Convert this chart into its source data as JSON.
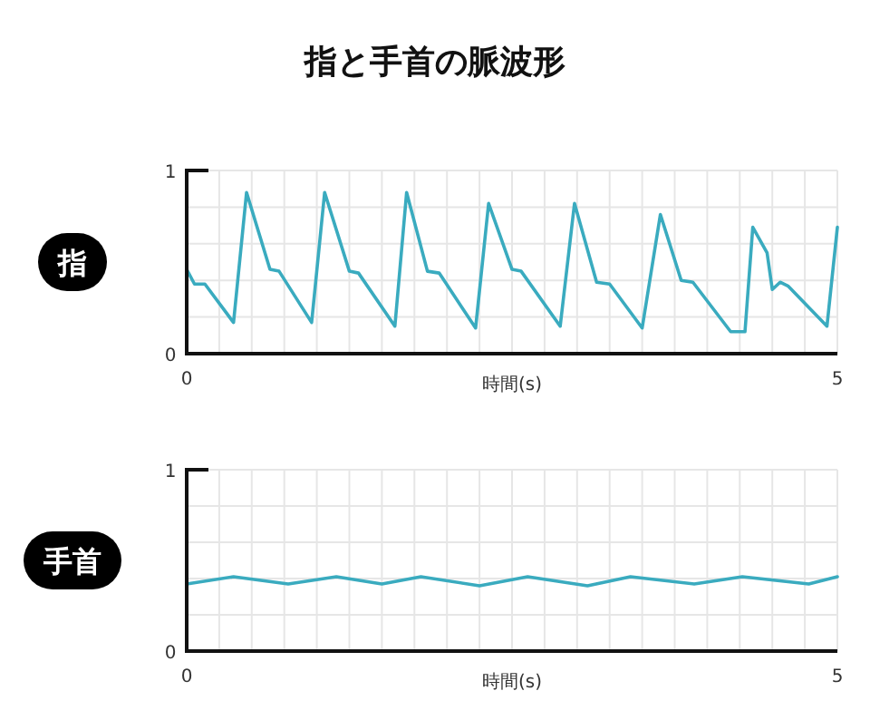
{
  "chart_data": [
    {
      "type": "line",
      "title": "指と手首の脈波形",
      "ylabel": "指",
      "xlabel": "時間(s)",
      "xlim": [
        0,
        5
      ],
      "ylim": [
        0,
        1
      ],
      "xticks": [
        {
          "value": 0,
          "label": "0"
        },
        {
          "value": 0.25,
          "label": null
        },
        {
          "value": 0.5,
          "label": null
        },
        {
          "value": 0.75,
          "label": null
        },
        {
          "value": 1,
          "label": null
        },
        {
          "value": 1.25,
          "label": null
        },
        {
          "value": 1.5,
          "label": null
        },
        {
          "value": 1.75,
          "label": null
        },
        {
          "value": 2,
          "label": null
        },
        {
          "value": 2.25,
          "label": null
        },
        {
          "value": 2.5,
          "label": null
        },
        {
          "value": 2.75,
          "label": null
        },
        {
          "value": 3,
          "label": null
        },
        {
          "value": 3.25,
          "label": null
        },
        {
          "value": 3.5,
          "label": null
        },
        {
          "value": 3.75,
          "label": null
        },
        {
          "value": 4,
          "label": null
        },
        {
          "value": 4.25,
          "label": null
        },
        {
          "value": 4.5,
          "label": null
        },
        {
          "value": 4.75,
          "label": null
        },
        {
          "value": 5,
          "label": "5"
        }
      ],
      "yticks": [
        {
          "value": 0,
          "label": "0"
        },
        {
          "value": 0.2,
          "label": null
        },
        {
          "value": 0.4,
          "label": null
        },
        {
          "value": 0.6,
          "label": null
        },
        {
          "value": 0.8,
          "label": null
        },
        {
          "value": 1,
          "label": "1"
        }
      ],
      "grid": true,
      "series": [
        {
          "color": "#3aabbf",
          "x": [
            0,
            0.06,
            0.14,
            0.36,
            0.46,
            0.64,
            0.71,
            0.96,
            1.06,
            1.25,
            1.32,
            1.6,
            1.69,
            1.85,
            1.94,
            2.22,
            2.32,
            2.5,
            2.57,
            2.87,
            2.98,
            3.15,
            3.25,
            3.5,
            3.64,
            3.8,
            3.89,
            4.18,
            4.29,
            4.35,
            4.46,
            4.5,
            4.56,
            4.62,
            4.92,
            5
          ],
          "values": [
            0.46,
            0.38,
            0.38,
            0.17,
            0.88,
            0.46,
            0.45,
            0.17,
            0.88,
            0.45,
            0.44,
            0.15,
            0.88,
            0.45,
            0.44,
            0.14,
            0.82,
            0.46,
            0.45,
            0.15,
            0.82,
            0.39,
            0.38,
            0.14,
            0.76,
            0.4,
            0.39,
            0.12,
            0.12,
            0.69,
            0.55,
            0.35,
            0.39,
            0.37,
            0.15,
            0.69
          ]
        }
      ]
    },
    {
      "type": "line",
      "ylabel": "手首",
      "xlabel": "時間(s)",
      "xlim": [
        0,
        5
      ],
      "ylim": [
        0,
        1
      ],
      "xticks": [
        {
          "value": 0,
          "label": "0"
        },
        {
          "value": 0.25,
          "label": null
        },
        {
          "value": 0.5,
          "label": null
        },
        {
          "value": 0.75,
          "label": null
        },
        {
          "value": 1,
          "label": null
        },
        {
          "value": 1.25,
          "label": null
        },
        {
          "value": 1.5,
          "label": null
        },
        {
          "value": 1.75,
          "label": null
        },
        {
          "value": 2,
          "label": null
        },
        {
          "value": 2.25,
          "label": null
        },
        {
          "value": 2.5,
          "label": null
        },
        {
          "value": 2.75,
          "label": null
        },
        {
          "value": 3,
          "label": null
        },
        {
          "value": 3.25,
          "label": null
        },
        {
          "value": 3.5,
          "label": null
        },
        {
          "value": 3.75,
          "label": null
        },
        {
          "value": 4,
          "label": null
        },
        {
          "value": 4.25,
          "label": null
        },
        {
          "value": 4.5,
          "label": null
        },
        {
          "value": 4.75,
          "label": null
        },
        {
          "value": 5,
          "label": "5"
        }
      ],
      "yticks": [
        {
          "value": 0,
          "label": "0"
        },
        {
          "value": 0.2,
          "label": null
        },
        {
          "value": 0.4,
          "label": null
        },
        {
          "value": 0.6,
          "label": null
        },
        {
          "value": 0.8,
          "label": null
        },
        {
          "value": 1,
          "label": "1"
        }
      ],
      "grid": true,
      "series": [
        {
          "color": "#3aabbf",
          "x": [
            0,
            0.36,
            0.78,
            1.15,
            1.5,
            1.8,
            2.25,
            2.62,
            3.08,
            3.41,
            3.9,
            4.27,
            4.78,
            5
          ],
          "values": [
            0.37,
            0.41,
            0.37,
            0.41,
            0.37,
            0.41,
            0.36,
            0.41,
            0.36,
            0.41,
            0.37,
            0.41,
            0.37,
            0.41
          ]
        }
      ]
    }
  ]
}
